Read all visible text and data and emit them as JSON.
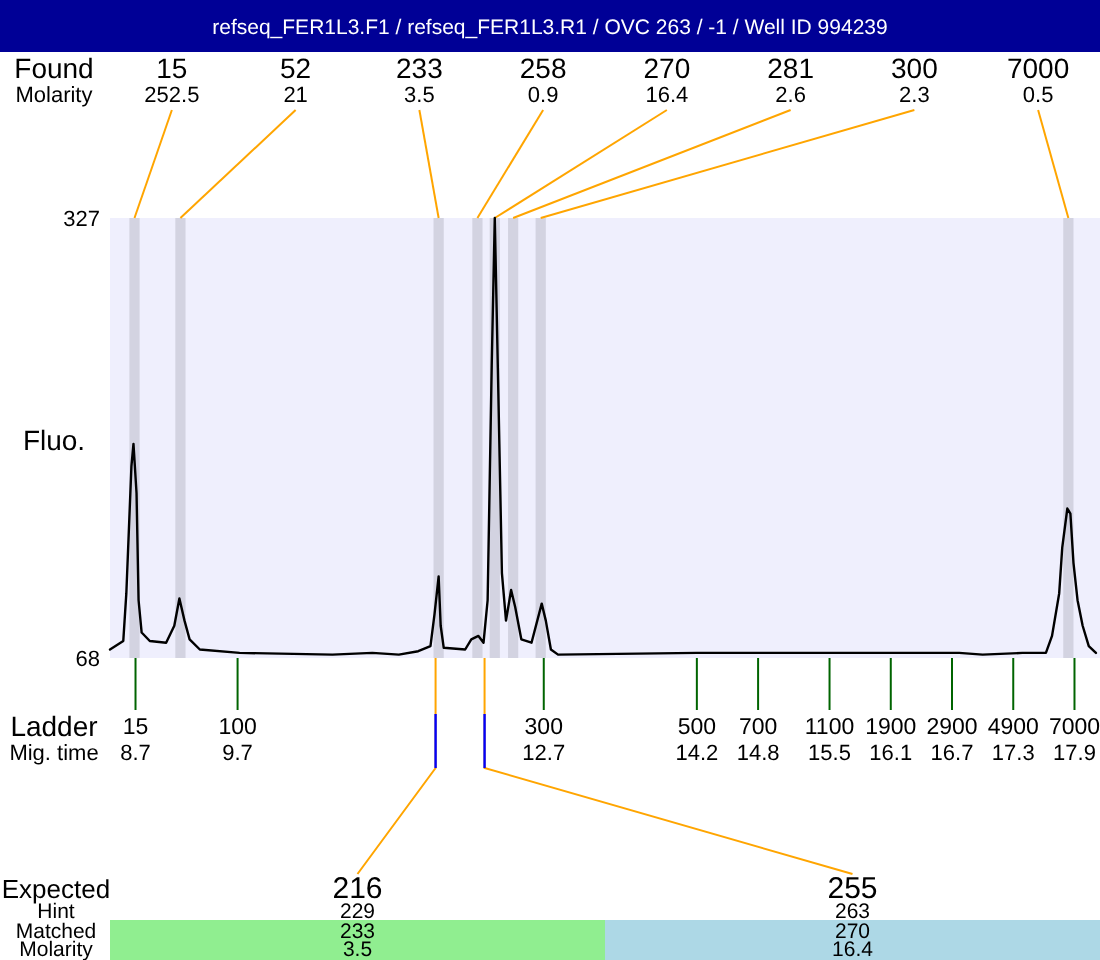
{
  "chart_data": {
    "type": "line",
    "title": "refseq_FER1L3.F1 / refseq_FER1L3.R1 / OVC 263 / -1 / Well ID 994239",
    "ylabel": "Fluo.",
    "xlabel": "Mig. time",
    "x": [
      8.45,
      8.58,
      8.61,
      8.66,
      8.68,
      8.71,
      8.73,
      8.76,
      8.84,
      9.0,
      9.08,
      9.13,
      9.18,
      9.23,
      9.33,
      9.72,
      10.63,
      11.02,
      11.28,
      11.47,
      11.59,
      11.63,
      11.67,
      11.69,
      11.72,
      11.93,
      11.99,
      12.06,
      12.11,
      12.15,
      12.19,
      12.22,
      12.25,
      12.29,
      12.33,
      12.38,
      12.42,
      12.48,
      12.58,
      12.68,
      12.72,
      12.77,
      12.84,
      14.2,
      16.77,
      17.0,
      17.39,
      17.62,
      17.68,
      17.75,
      17.78,
      17.83,
      17.86,
      17.89,
      17.93,
      17.98,
      18.04,
      18.11
    ],
    "values": [
      73,
      78,
      106,
      181,
      194,
      165,
      102,
      83,
      78,
      77,
      87,
      103,
      90,
      79,
      73,
      71,
      70,
      71,
      70,
      72,
      75,
      94,
      116,
      87,
      74,
      73,
      79,
      81,
      77,
      102,
      240,
      327,
      239,
      118,
      90,
      108,
      98,
      79,
      77,
      100,
      90,
      73,
      70,
      71,
      71,
      70,
      71,
      71,
      81,
      106,
      133,
      156,
      153,
      124,
      102,
      87,
      75,
      71
    ],
    "color": "#000000",
    "xlim": [
      8.45,
      18.15
    ],
    "xticks": [
      8.7,
      9.7,
      12.7,
      14.2,
      14.8,
      15.5,
      16.1,
      16.7,
      17.3,
      17.9
    ],
    "ylim": [
      68,
      327
    ],
    "yticks": [
      68,
      327
    ],
    "bands": [
      {
        "axis": "x",
        "from": 8.64,
        "to": 8.74,
        "label": "15",
        "color": "#d3d3e1"
      },
      {
        "axis": "x",
        "from": 9.09,
        "to": 9.19,
        "label": "52",
        "color": "#d3d3e1"
      },
      {
        "axis": "x",
        "from": 11.62,
        "to": 11.72,
        "label": "233",
        "color": "#d3d3e1"
      },
      {
        "axis": "x",
        "from": 12.0,
        "to": 12.1,
        "label": "258",
        "color": "#d3d3e1"
      },
      {
        "axis": "x",
        "from": 12.17,
        "to": 12.27,
        "label": "270",
        "color": "#d3d3e1"
      },
      {
        "axis": "x",
        "from": 12.35,
        "to": 12.45,
        "label": "281",
        "color": "#d3d3e1"
      },
      {
        "axis": "x",
        "from": 12.62,
        "to": 12.72,
        "label": "300",
        "color": "#d3d3e1"
      },
      {
        "axis": "x",
        "from": 17.79,
        "to": 17.89,
        "label": "7000",
        "color": "#d3d3e1"
      }
    ],
    "annotations": [
      "Found",
      "Molarity",
      {
        "text": "252.5",
        "x": 8.69,
        "y": 327
      },
      {
        "text": "21",
        "x": 9.14,
        "y": 327
      },
      {
        "text": "3.5",
        "x": 11.67,
        "y": 327
      },
      {
        "text": "0.9",
        "x": 12.05,
        "y": 327
      },
      {
        "text": "16.4",
        "x": 12.22,
        "y": 327
      },
      {
        "text": "2.6",
        "x": 12.4,
        "y": 327
      },
      {
        "text": "2.3",
        "x": 12.67,
        "y": 327
      },
      {
        "text": "0.5",
        "x": 17.84,
        "y": 327
      },
      "Ladder",
      "15",
      "100",
      "300",
      "500",
      "700",
      "1100",
      "1900",
      "2900",
      "4900",
      "7000",
      "Expected",
      "Hint",
      "Matched",
      "Molarity",
      {
        "text": "216",
        "x": 11.64,
        "y": 68
      },
      "229",
      "233",
      "3.5",
      {
        "text": "255",
        "x": 12.12,
        "y": 68
      },
      "263",
      "270",
      "16.4"
    ]
  }
}
